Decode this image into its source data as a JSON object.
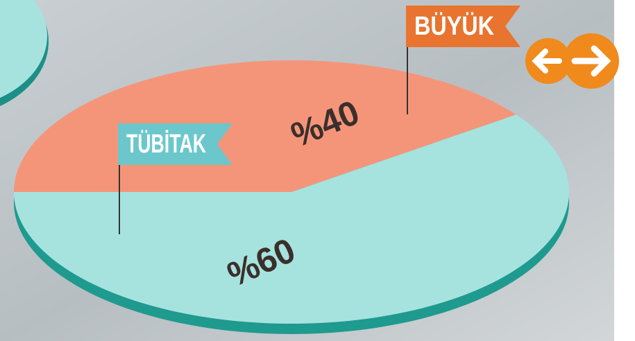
{
  "chart_data": {
    "type": "pie",
    "categories": [
      "BÜYÜK",
      "TÜBİTAK"
    ],
    "values": [
      40,
      60
    ],
    "value_labels": [
      "%40",
      "%60"
    ],
    "colors": [
      "#f4957a",
      "#a6e3df"
    ]
  }
}
